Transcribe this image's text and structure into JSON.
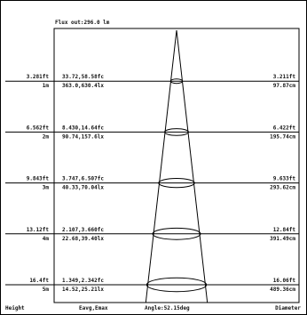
{
  "chart_data": {
    "type": "cone_diagram",
    "flux_out": "Flux out:296.0 lm",
    "angle_label": "Angle:52.15deg",
    "col_headers": {
      "height": "Height",
      "eavg_emax": "Eavg,Emax",
      "diameter": "Diameter"
    },
    "rows": [
      {
        "height_ft": "3.281ft",
        "height_m": "1m",
        "e_fc": "33.72,58.58fc",
        "e_lx": "363.0,630.4lx",
        "diam_ft": "3.211ft",
        "diam_cm": "97.87cm",
        "height_value_m": 1,
        "diameter_value_cm": 97.87
      },
      {
        "height_ft": "6.562ft",
        "height_m": "2m",
        "e_fc": "8.430,14.64fc",
        "e_lx": "90.74,157.6lx",
        "diam_ft": "6.422ft",
        "diam_cm": "195.74cm",
        "height_value_m": 2,
        "diameter_value_cm": 195.74
      },
      {
        "height_ft": "9.843ft",
        "height_m": "3m",
        "e_fc": "3.747,6.507fc",
        "e_lx": "40.33,70.04lx",
        "diam_ft": "9.633ft",
        "diam_cm": "293.62cm",
        "height_value_m": 3,
        "diameter_value_cm": 293.62
      },
      {
        "height_ft": "13.12ft",
        "height_m": "4m",
        "e_fc": "2.107,3.660fc",
        "e_lx": "22.68,39.40lx",
        "diam_ft": "12.84ft",
        "diam_cm": "391.49cm",
        "height_value_m": 4,
        "diameter_value_cm": 391.49
      },
      {
        "height_ft": "16.4ft",
        "height_m": "5m",
        "e_fc": "1.349,2.342fc",
        "e_lx": "14.52,25.21lx",
        "diam_ft": "16.06ft",
        "diam_cm": "489.36cm",
        "height_value_m": 5,
        "diameter_value_cm": 489.36
      }
    ]
  }
}
